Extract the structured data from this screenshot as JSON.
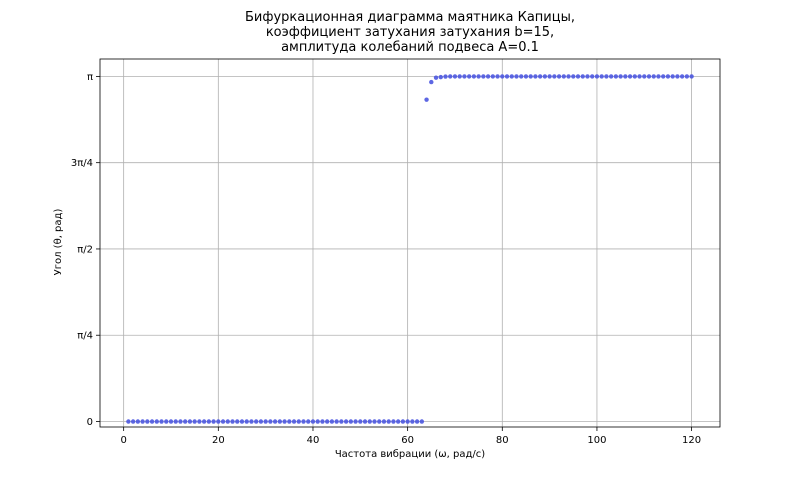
{
  "chart_data": {
    "type": "scatter",
    "title": [
      "Бифуркационная диаграмма маятника Капицы,",
      "коэффициент затухания затухания b=15,",
      "амплитуда колебаний подвеса A=0.1"
    ],
    "xlabel": "Частота вибрации (ω, рад/с)",
    "ylabel": "Угол (θ, рад)",
    "xlim": [
      -5,
      126
    ],
    "ylim": [
      -0.05,
      3.3
    ],
    "xticks": [
      {
        "value": 0,
        "label": "0"
      },
      {
        "value": 20,
        "label": "20"
      },
      {
        "value": 40,
        "label": "40"
      },
      {
        "value": 60,
        "label": "60"
      },
      {
        "value": 80,
        "label": "80"
      },
      {
        "value": 100,
        "label": "100"
      },
      {
        "value": 120,
        "label": "120"
      }
    ],
    "yticks": [
      {
        "value": 0,
        "label": "0"
      },
      {
        "value": 0.7853981634,
        "label": "π/4"
      },
      {
        "value": 1.5707963268,
        "label": "π/2"
      },
      {
        "value": 2.3561944902,
        "label": "3π/4"
      },
      {
        "value": 3.1415926536,
        "label": "π"
      }
    ],
    "grid": true,
    "marker_color": "#4b57e0",
    "series": [
      {
        "points": [
          [
            1,
            0
          ],
          [
            2,
            0
          ],
          [
            3,
            0
          ],
          [
            4,
            0
          ],
          [
            5,
            0
          ],
          [
            6,
            0
          ],
          [
            7,
            0
          ],
          [
            8,
            0
          ],
          [
            9,
            0
          ],
          [
            10,
            0
          ],
          [
            11,
            0
          ],
          [
            12,
            0
          ],
          [
            13,
            0
          ],
          [
            14,
            0
          ],
          [
            15,
            0
          ],
          [
            16,
            0
          ],
          [
            17,
            0
          ],
          [
            18,
            0
          ],
          [
            19,
            0
          ],
          [
            20,
            0
          ],
          [
            21,
            0
          ],
          [
            22,
            0
          ],
          [
            23,
            0
          ],
          [
            24,
            0
          ],
          [
            25,
            0
          ],
          [
            26,
            0
          ],
          [
            27,
            0
          ],
          [
            28,
            0
          ],
          [
            29,
            0
          ],
          [
            30,
            0
          ],
          [
            31,
            0
          ],
          [
            32,
            0
          ],
          [
            33,
            0
          ],
          [
            34,
            0
          ],
          [
            35,
            0
          ],
          [
            36,
            0
          ],
          [
            37,
            0
          ],
          [
            38,
            0
          ],
          [
            39,
            0
          ],
          [
            40,
            0
          ],
          [
            41,
            0
          ],
          [
            42,
            0
          ],
          [
            43,
            0
          ],
          [
            44,
            0
          ],
          [
            45,
            0
          ],
          [
            46,
            0
          ],
          [
            47,
            0
          ],
          [
            48,
            0
          ],
          [
            49,
            0
          ],
          [
            50,
            0
          ],
          [
            51,
            0
          ],
          [
            52,
            0
          ],
          [
            53,
            0
          ],
          [
            54,
            0
          ],
          [
            55,
            0
          ],
          [
            56,
            0
          ],
          [
            57,
            0
          ],
          [
            58,
            0
          ],
          [
            59,
            0
          ],
          [
            60,
            0
          ],
          [
            61,
            0
          ],
          [
            62,
            0
          ],
          [
            63,
            0
          ],
          [
            64,
            2.93
          ],
          [
            65,
            3.09
          ],
          [
            66,
            3.13
          ],
          [
            67,
            3.135
          ],
          [
            68,
            3.14
          ],
          [
            69,
            3.1416
          ],
          [
            70,
            3.1416
          ],
          [
            71,
            3.1416
          ],
          [
            72,
            3.1416
          ],
          [
            73,
            3.1416
          ],
          [
            74,
            3.1416
          ],
          [
            75,
            3.1416
          ],
          [
            76,
            3.1416
          ],
          [
            77,
            3.1416
          ],
          [
            78,
            3.1416
          ],
          [
            79,
            3.1416
          ],
          [
            80,
            3.1416
          ],
          [
            81,
            3.1416
          ],
          [
            82,
            3.1416
          ],
          [
            83,
            3.1416
          ],
          [
            84,
            3.1416
          ],
          [
            85,
            3.1416
          ],
          [
            86,
            3.1416
          ],
          [
            87,
            3.1416
          ],
          [
            88,
            3.1416
          ],
          [
            89,
            3.1416
          ],
          [
            90,
            3.1416
          ],
          [
            91,
            3.1416
          ],
          [
            92,
            3.1416
          ],
          [
            93,
            3.1416
          ],
          [
            94,
            3.1416
          ],
          [
            95,
            3.1416
          ],
          [
            96,
            3.1416
          ],
          [
            97,
            3.1416
          ],
          [
            98,
            3.1416
          ],
          [
            99,
            3.1416
          ],
          [
            100,
            3.1416
          ],
          [
            101,
            3.1416
          ],
          [
            102,
            3.1416
          ],
          [
            103,
            3.1416
          ],
          [
            104,
            3.1416
          ],
          [
            105,
            3.1416
          ],
          [
            106,
            3.1416
          ],
          [
            107,
            3.1416
          ],
          [
            108,
            3.1416
          ],
          [
            109,
            3.1416
          ],
          [
            110,
            3.1416
          ],
          [
            111,
            3.1416
          ],
          [
            112,
            3.1416
          ],
          [
            113,
            3.1416
          ],
          [
            114,
            3.1416
          ],
          [
            115,
            3.1416
          ],
          [
            116,
            3.1416
          ],
          [
            117,
            3.1416
          ],
          [
            118,
            3.1416
          ],
          [
            119,
            3.1416
          ],
          [
            120,
            3.1416
          ]
        ]
      }
    ]
  }
}
